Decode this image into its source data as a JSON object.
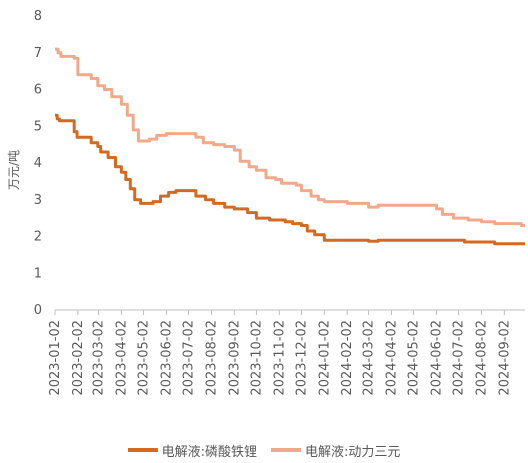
{
  "chart_data": {
    "type": "line",
    "ylabel": "万元/吨",
    "ylim": [
      0,
      8
    ],
    "yticks": [
      0,
      1,
      2,
      3,
      4,
      5,
      6,
      7,
      8
    ],
    "categories": [
      "2023-01-02",
      "2023-02-02",
      "2023-03-02",
      "2023-04-02",
      "2023-05-02",
      "2023-06-02",
      "2023-07-02",
      "2023-08-02",
      "2023-09-02",
      "2023-10-02",
      "2023-11-02",
      "2023-12-02",
      "2024-01-02",
      "2024-02-02",
      "2024-03-02",
      "2024-04-02",
      "2024-05-02",
      "2024-06-02",
      "2024-07-02",
      "2024-08-02",
      "2024-09-02"
    ],
    "legend_position": "bottom",
    "grid": false,
    "series": [
      {
        "name": "电解液:磷酸铁锂",
        "color": "#D4691F",
        "points": [
          [
            "2023-01-02",
            5.3
          ],
          [
            "2023-01-05",
            5.2
          ],
          [
            "2023-01-08",
            5.15
          ],
          [
            "2023-01-25",
            5.15
          ],
          [
            "2023-01-28",
            4.85
          ],
          [
            "2023-02-01",
            4.7
          ],
          [
            "2023-02-15",
            4.7
          ],
          [
            "2023-02-20",
            4.55
          ],
          [
            "2023-03-01",
            4.45
          ],
          [
            "2023-03-05",
            4.3
          ],
          [
            "2023-03-15",
            4.15
          ],
          [
            "2023-03-25",
            3.9
          ],
          [
            "2023-04-02",
            3.75
          ],
          [
            "2023-04-08",
            3.55
          ],
          [
            "2023-04-14",
            3.3
          ],
          [
            "2023-04-20",
            3.0
          ],
          [
            "2023-04-28",
            2.9
          ],
          [
            "2023-05-08",
            2.9
          ],
          [
            "2023-05-15",
            2.95
          ],
          [
            "2023-05-25",
            3.1
          ],
          [
            "2023-06-05",
            3.2
          ],
          [
            "2023-06-15",
            3.25
          ],
          [
            "2023-07-05",
            3.25
          ],
          [
            "2023-07-12",
            3.1
          ],
          [
            "2023-07-25",
            3.0
          ],
          [
            "2023-08-05",
            2.9
          ],
          [
            "2023-08-20",
            2.8
          ],
          [
            "2023-09-02",
            2.75
          ],
          [
            "2023-09-20",
            2.65
          ],
          [
            "2023-10-02",
            2.5
          ],
          [
            "2023-10-20",
            2.45
          ],
          [
            "2023-11-10",
            2.4
          ],
          [
            "2023-11-20",
            2.35
          ],
          [
            "2023-12-02",
            2.3
          ],
          [
            "2023-12-10",
            2.15
          ],
          [
            "2023-12-20",
            2.05
          ],
          [
            "2024-01-02",
            1.9
          ],
          [
            "2024-02-02",
            1.9
          ],
          [
            "2024-03-02",
            1.87
          ],
          [
            "2024-03-15",
            1.9
          ],
          [
            "2024-07-02",
            1.9
          ],
          [
            "2024-07-10",
            1.85
          ],
          [
            "2024-08-20",
            1.8
          ],
          [
            "2024-09-20",
            1.8
          ]
        ]
      },
      {
        "name": "电解液:动力三元",
        "color": "#F2A98A",
        "points": [
          [
            "2023-01-02",
            7.1
          ],
          [
            "2023-01-06",
            7.0
          ],
          [
            "2023-01-10",
            6.9
          ],
          [
            "2023-01-28",
            6.85
          ],
          [
            "2023-02-02",
            6.4
          ],
          [
            "2023-02-20",
            6.3
          ],
          [
            "2023-03-01",
            6.1
          ],
          [
            "2023-03-10",
            6.0
          ],
          [
            "2023-03-20",
            5.8
          ],
          [
            "2023-04-02",
            5.6
          ],
          [
            "2023-04-10",
            5.3
          ],
          [
            "2023-04-18",
            4.9
          ],
          [
            "2023-04-25",
            4.6
          ],
          [
            "2023-05-10",
            4.65
          ],
          [
            "2023-05-20",
            4.75
          ],
          [
            "2023-06-02",
            4.8
          ],
          [
            "2023-07-02",
            4.8
          ],
          [
            "2023-07-12",
            4.7
          ],
          [
            "2023-07-22",
            4.55
          ],
          [
            "2023-08-05",
            4.5
          ],
          [
            "2023-08-20",
            4.45
          ],
          [
            "2023-09-02",
            4.35
          ],
          [
            "2023-09-10",
            4.05
          ],
          [
            "2023-09-22",
            3.9
          ],
          [
            "2023-10-02",
            3.8
          ],
          [
            "2023-10-15",
            3.6
          ],
          [
            "2023-10-28",
            3.55
          ],
          [
            "2023-11-05",
            3.45
          ],
          [
            "2023-11-25",
            3.4
          ],
          [
            "2023-12-02",
            3.25
          ],
          [
            "2023-12-15",
            3.1
          ],
          [
            "2023-12-25",
            3.0
          ],
          [
            "2024-01-02",
            2.95
          ],
          [
            "2024-02-02",
            2.9
          ],
          [
            "2024-02-25",
            2.9
          ],
          [
            "2024-03-02",
            2.8
          ],
          [
            "2024-03-15",
            2.85
          ],
          [
            "2024-05-25",
            2.85
          ],
          [
            "2024-06-02",
            2.75
          ],
          [
            "2024-06-10",
            2.6
          ],
          [
            "2024-06-25",
            2.5
          ],
          [
            "2024-07-15",
            2.45
          ],
          [
            "2024-08-02",
            2.4
          ],
          [
            "2024-08-20",
            2.35
          ],
          [
            "2024-09-25",
            2.3
          ]
        ]
      }
    ]
  }
}
